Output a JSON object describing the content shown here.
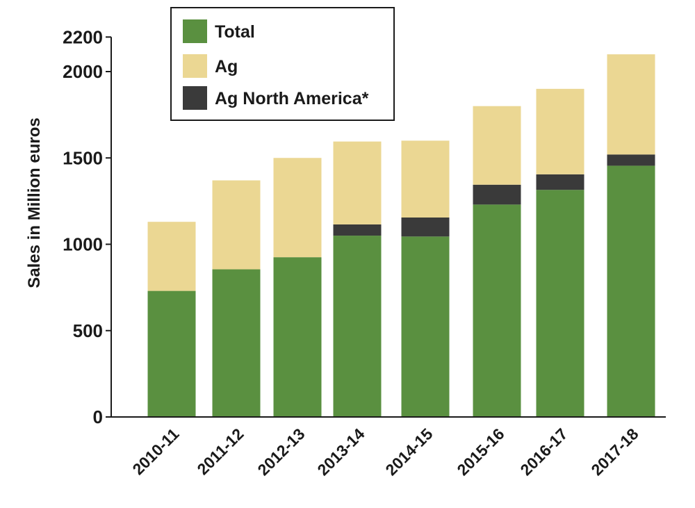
{
  "chart_data": {
    "type": "bar",
    "stacked": true,
    "categories": [
      "2010-11",
      "2011-12",
      "2012-13",
      "2013-14",
      "2014-15",
      "2015-16",
      "2016-17",
      "2017-18"
    ],
    "series": [
      {
        "name": "Total",
        "color": "#5a9040",
        "values": [
          730,
          855,
          925,
          1050,
          1045,
          1230,
          1315,
          1455
        ]
      },
      {
        "name": "Ag North America*",
        "color": "#3a3a3a",
        "values": [
          0,
          0,
          0,
          65,
          110,
          115,
          90,
          65
        ]
      },
      {
        "name": "Ag",
        "color": "#ebd793",
        "values": [
          400,
          515,
          575,
          480,
          445,
          455,
          495,
          580
        ]
      }
    ],
    "legend_order": [
      "Total",
      "Ag",
      "Ag North America*"
    ],
    "ylabel": "Sales in Million euros",
    "xlabel": "",
    "ylim": [
      0,
      2200
    ],
    "yticks": [
      0,
      500,
      1000,
      1500,
      2000,
      2200
    ],
    "legend_position": "top-left",
    "grid": false
  }
}
